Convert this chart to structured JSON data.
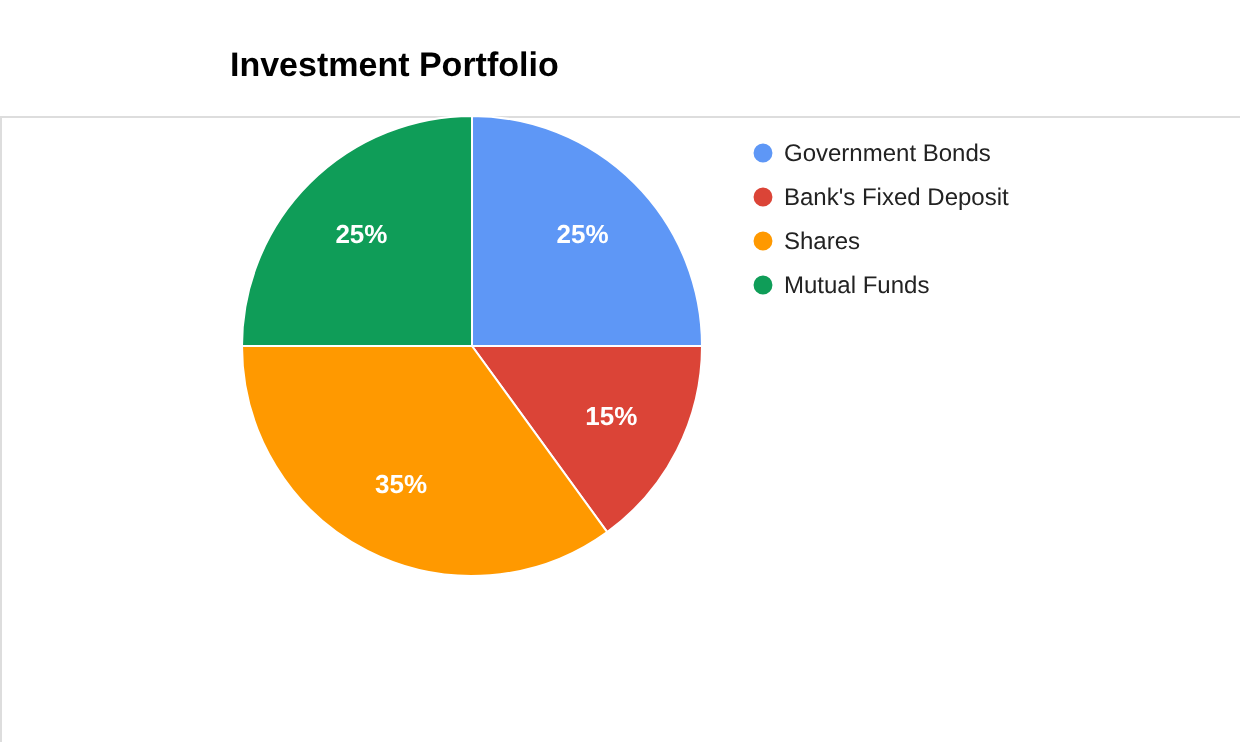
{
  "chart_data": {
    "type": "pie",
    "title": "Investment Portfolio",
    "categories": [
      "Government Bonds",
      "Bank's Fixed Deposit",
      "Shares",
      "Mutual Funds"
    ],
    "values": [
      25,
      15,
      35,
      25
    ],
    "colors": [
      "#5e97f6",
      "#db4437",
      "#ff9900",
      "#0f9d58"
    ],
    "value_labels": [
      "25%",
      "15%",
      "35%",
      "25%"
    ],
    "legend": "top right"
  }
}
